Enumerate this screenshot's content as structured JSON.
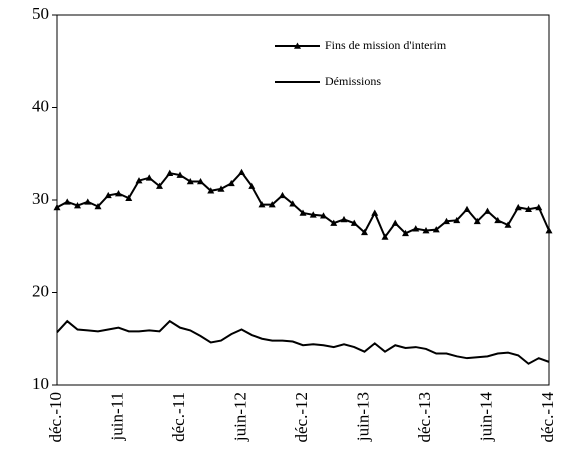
{
  "chart_data": {
    "type": "line",
    "categories": [
      "déc.-10",
      null,
      null,
      null,
      null,
      null,
      "juin-11",
      null,
      null,
      null,
      null,
      null,
      "déc.-11",
      null,
      null,
      null,
      null,
      null,
      "juin-12",
      null,
      null,
      null,
      null,
      null,
      "déc.-12",
      null,
      null,
      null,
      null,
      null,
      "juin-13",
      null,
      null,
      null,
      null,
      null,
      "déc.-13",
      null,
      null,
      null,
      null,
      null,
      "juin-14",
      null,
      null,
      null,
      null,
      null,
      "déc.-14"
    ],
    "series": [
      {
        "name": "Fins de mission d'interim",
        "color": "#000000",
        "marker": "triangle",
        "values": [
          29.2,
          29.8,
          29.4,
          29.8,
          29.3,
          30.5,
          30.7,
          30.2,
          32.1,
          32.4,
          31.5,
          32.9,
          32.7,
          32.0,
          32.0,
          31.0,
          31.2,
          31.8,
          33.0,
          31.5,
          29.5,
          29.5,
          30.5,
          29.6,
          28.6,
          28.4,
          28.3,
          27.5,
          27.9,
          27.5,
          26.5,
          28.6,
          26.0,
          27.5,
          26.4,
          26.9,
          26.7,
          26.8,
          27.7,
          27.8,
          29.0,
          27.7,
          28.8,
          27.8,
          27.3,
          29.2,
          29.0,
          29.2,
          26.7
        ]
      },
      {
        "name": "Démissions",
        "color": "#000000",
        "marker": null,
        "values": [
          15.7,
          16.9,
          16.0,
          15.9,
          15.8,
          16.0,
          16.2,
          15.8,
          15.8,
          15.9,
          15.8,
          16.9,
          16.2,
          15.9,
          15.3,
          14.6,
          14.8,
          15.5,
          16.0,
          15.4,
          15.0,
          14.8,
          14.8,
          14.7,
          14.3,
          14.4,
          14.3,
          14.1,
          14.4,
          14.1,
          13.6,
          14.5,
          13.6,
          14.3,
          14.0,
          14.1,
          13.9,
          13.4,
          13.4,
          13.1,
          12.9,
          13.0,
          13.1,
          13.4,
          13.5,
          13.2,
          12.3,
          12.9,
          12.5
        ]
      }
    ],
    "ylim": [
      10,
      50
    ],
    "yticks": [
      10,
      20,
      30,
      40,
      50
    ],
    "grid": false,
    "legend": "upper-right"
  }
}
